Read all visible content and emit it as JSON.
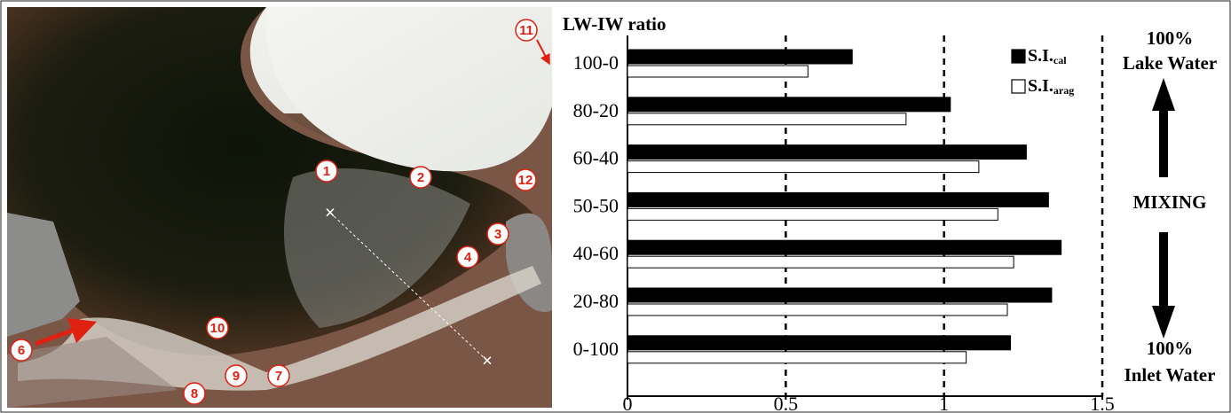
{
  "image_markers": [
    "1",
    "2",
    "3",
    "4",
    "6",
    "7",
    "8",
    "9",
    "10",
    "11",
    "12"
  ],
  "chart_data": {
    "type": "bar",
    "orientation": "horizontal",
    "y_label": "LW-IW ratio",
    "categories": [
      "100-0",
      "80-20",
      "60-40",
      "50-50",
      "40-60",
      "20-80",
      "0-100"
    ],
    "series": [
      {
        "name": "S.I.",
        "subscript": "cal",
        "color": "#000000",
        "values": [
          0.71,
          1.02,
          1.26,
          1.33,
          1.37,
          1.34,
          1.21
        ]
      },
      {
        "name": "S.I.",
        "subscript": "arag",
        "color": "#ffffff",
        "values": [
          0.57,
          0.88,
          1.11,
          1.17,
          1.22,
          1.2,
          1.07
        ]
      }
    ],
    "xlim": [
      0,
      1.5
    ],
    "xticks": [
      0,
      0.5,
      1,
      1.5
    ],
    "grid": true,
    "legend": "top-right",
    "annotations": [
      "100%",
      "Lake Water",
      "MIXING",
      "100%",
      "Inlet Water"
    ]
  }
}
